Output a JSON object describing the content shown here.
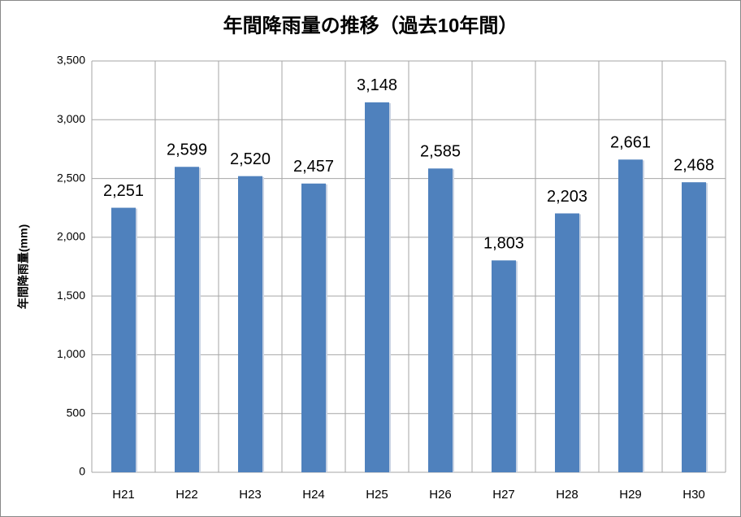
{
  "chart_data": {
    "type": "bar",
    "title": "年間降雨量の推移（過去10年間）",
    "y_label": "年間降雨量(mm)",
    "categories": [
      "H21",
      "H22",
      "H23",
      "H24",
      "H25",
      "H26",
      "H27",
      "H28",
      "H29",
      "H30"
    ],
    "values": [
      2251,
      2599,
      2520,
      2457,
      3148,
      2585,
      1803,
      2203,
      2661,
      2468
    ],
    "value_labels": [
      "2,251",
      "2,599",
      "2,520",
      "2,457",
      "3,148",
      "2,585",
      "1,803",
      "2,203",
      "2,661",
      "2,468"
    ],
    "color": "#4f81bd",
    "ylim": [
      0,
      3500
    ],
    "yticks": [
      0,
      500,
      {
        "value": 1000,
        "label": "1,000"
      },
      {
        "value": 1500,
        "label": "1,500"
      },
      {
        "value": 2000,
        "label": "2,000"
      },
      {
        "value": 2500,
        "label": "2,500"
      },
      {
        "value": 3000,
        "label": "3,000"
      },
      {
        "value": 3500,
        "label": "3,500"
      }
    ],
    "grid": true
  }
}
